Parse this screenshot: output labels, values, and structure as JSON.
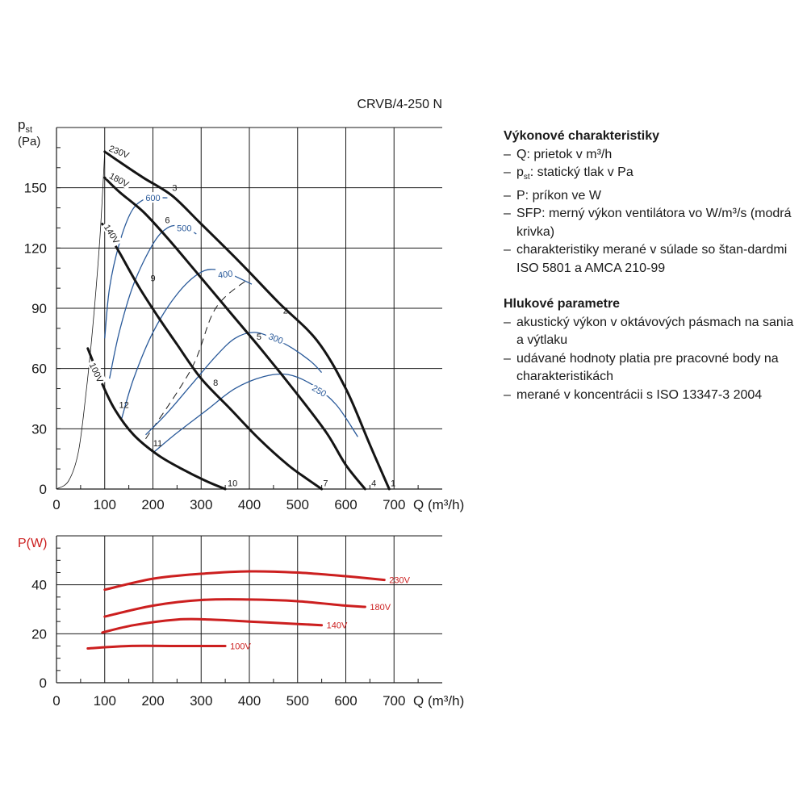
{
  "chart_data": [
    {
      "type": "line",
      "title": "CRVB/4-250 N",
      "xlabel": "Q (m³/h)",
      "ylabel_main": "p",
      "ylabel_sub": "st",
      "ylabel_unit": "(Pa)",
      "xlim": [
        0,
        800
      ],
      "ylim": [
        0,
        180
      ],
      "xticks": [
        0,
        100,
        200,
        300,
        400,
        500,
        600,
        700
      ],
      "yticks": [
        0,
        30,
        60,
        90,
        120,
        150
      ],
      "voltage_curves": [
        {
          "name": "230V",
          "points": [
            [
              100,
              168
            ],
            [
              130,
              163
            ],
            [
              180,
              155
            ],
            [
              240,
              146
            ],
            [
              300,
              132
            ],
            [
              380,
              113
            ],
            [
              460,
              93
            ],
            [
              540,
              74
            ],
            [
              600,
              50
            ],
            [
              650,
              22
            ],
            [
              690,
              0
            ]
          ]
        },
        {
          "name": "180V",
          "points": [
            [
              100,
              155
            ],
            [
              130,
              148
            ],
            [
              180,
              138
            ],
            [
              230,
              125
            ],
            [
              290,
              108
            ],
            [
              360,
              88
            ],
            [
              430,
              68
            ],
            [
              500,
              47
            ],
            [
              560,
              28
            ],
            [
              600,
              12
            ],
            [
              640,
              0
            ]
          ]
        },
        {
          "name": "140V",
          "points": [
            [
              95,
              132
            ],
            [
              130,
              118
            ],
            [
              170,
              101
            ],
            [
              210,
              86
            ],
            [
              250,
              72
            ],
            [
              300,
              55
            ],
            [
              360,
              40
            ],
            [
              420,
              25
            ],
            [
              480,
              12
            ],
            [
              520,
              5
            ],
            [
              550,
              0
            ]
          ]
        },
        {
          "name": "100V",
          "points": [
            [
              65,
              70
            ],
            [
              90,
              55
            ],
            [
              120,
              40
            ],
            [
              160,
              27
            ],
            [
              210,
              17
            ],
            [
              260,
              10
            ],
            [
              310,
              4
            ],
            [
              350,
              0
            ]
          ]
        }
      ],
      "sfp_curves": [
        {
          "name": "600",
          "points": [
            [
              100,
              75
            ],
            [
              110,
              100
            ],
            [
              130,
              122
            ],
            [
              155,
              138
            ],
            [
              180,
              144
            ],
            [
              205,
              145
            ],
            [
              230,
              145
            ]
          ]
        },
        {
          "name": "500",
          "points": [
            [
              110,
              55
            ],
            [
              130,
              78
            ],
            [
              160,
              102
            ],
            [
              200,
              122
            ],
            [
              230,
              130
            ],
            [
              260,
              131
            ],
            [
              290,
              127
            ]
          ]
        },
        {
          "name": "400",
          "points": [
            [
              135,
              35
            ],
            [
              160,
              55
            ],
            [
              200,
              78
            ],
            [
              250,
              97
            ],
            [
              300,
              108
            ],
            [
              340,
              109
            ],
            [
              370,
              106
            ],
            [
              405,
              102
            ]
          ]
        },
        {
          "name": "300",
          "points": [
            [
              185,
              27
            ],
            [
              230,
              38
            ],
            [
              280,
              52
            ],
            [
              330,
              66
            ],
            [
              370,
              75
            ],
            [
              410,
              78
            ],
            [
              450,
              75
            ],
            [
              490,
              70
            ],
            [
              530,
              63
            ],
            [
              550,
              58
            ]
          ]
        },
        {
          "name": "250",
          "points": [
            [
              200,
              18
            ],
            [
              250,
              28
            ],
            [
              310,
              39
            ],
            [
              370,
              50
            ],
            [
              430,
              56
            ],
            [
              480,
              57
            ],
            [
              530,
              52
            ],
            [
              580,
              42
            ],
            [
              625,
              26
            ]
          ]
        }
      ],
      "system_curves": [
        {
          "points": [
            [
              0,
              0
            ],
            [
              25,
              4
            ],
            [
              45,
              18
            ],
            [
              60,
              45
            ],
            [
              75,
              80
            ],
            [
              90,
              125
            ],
            [
              100,
              168
            ]
          ]
        },
        {
          "points": [
            [
              185,
              25
            ],
            [
              280,
              60
            ],
            [
              330,
              90
            ],
            [
              400,
              105
            ]
          ]
        }
      ],
      "point_labels": [
        {
          "label": "1",
          "x": 698,
          "y": 3
        },
        {
          "label": "2",
          "x": 475,
          "y": 89
        },
        {
          "label": "3",
          "x": 245,
          "y": 150
        },
        {
          "label": "4",
          "x": 658,
          "y": 3
        },
        {
          "label": "5",
          "x": 420,
          "y": 76
        },
        {
          "label": "6",
          "x": 230,
          "y": 134
        },
        {
          "label": "7",
          "x": 558,
          "y": 3
        },
        {
          "label": "8",
          "x": 330,
          "y": 53
        },
        {
          "label": "9",
          "x": 200,
          "y": 105
        },
        {
          "label": "10",
          "x": 365,
          "y": 3
        },
        {
          "label": "11",
          "x": 210,
          "y": 23
        },
        {
          "label": "12",
          "x": 140,
          "y": 42
        }
      ]
    },
    {
      "type": "line",
      "ylabel": "P(W)",
      "xlabel": "Q (m³/h)",
      "xlim": [
        0,
        800
      ],
      "ylim": [
        0,
        60
      ],
      "xticks": [
        0,
        100,
        200,
        300,
        400,
        500,
        600,
        700
      ],
      "yticks": [
        0,
        20,
        40
      ],
      "series": [
        {
          "name": "230V",
          "points": [
            [
              100,
              38
            ],
            [
              200,
              42.5
            ],
            [
              300,
              44.5
            ],
            [
              400,
              45.5
            ],
            [
              500,
              45
            ],
            [
              600,
              43.5
            ],
            [
              680,
              42
            ]
          ]
        },
        {
          "name": "180V",
          "points": [
            [
              100,
              27
            ],
            [
              200,
              31.5
            ],
            [
              300,
              33.8
            ],
            [
              400,
              34
            ],
            [
              500,
              33.3
            ],
            [
              600,
              31.5
            ],
            [
              640,
              31
            ]
          ]
        },
        {
          "name": "140V",
          "points": [
            [
              95,
              20.5
            ],
            [
              160,
              23.5
            ],
            [
              250,
              25.8
            ],
            [
              320,
              25.8
            ],
            [
              400,
              25
            ],
            [
              500,
              24
            ],
            [
              550,
              23.5
            ]
          ]
        },
        {
          "name": "100V",
          "points": [
            [
              65,
              14
            ],
            [
              150,
              15
            ],
            [
              250,
              15
            ],
            [
              350,
              15
            ]
          ]
        }
      ]
    }
  ],
  "legend": {
    "section1_title": "Výkonové charakteristiky",
    "section1_items": [
      "Q: prietok v m³/h",
      "p: statický tlak v Pa",
      "P: príkon ve W",
      "SFP: merný výkon ventilátora vo W/m³/s (modrá krivka)",
      "charakteristiky merané v súlade so štan-dardmi ISO 5801 a AMCA 210-99"
    ],
    "pst_sub": "st",
    "section2_title": "Hlukové parametre",
    "section2_items": [
      "akustický výkon v oktávových pásmach na sania a výtlaku",
      "udávané hodnoty platia pre pracovné body na charakteristikách",
      "merané v koncentrácii s ISO 13347-3 2004"
    ]
  },
  "colors": {
    "voltage": "#141414",
    "sfp": "#2a5a9a",
    "power": "#cc1f1f",
    "grid": "#1a1a1a"
  }
}
